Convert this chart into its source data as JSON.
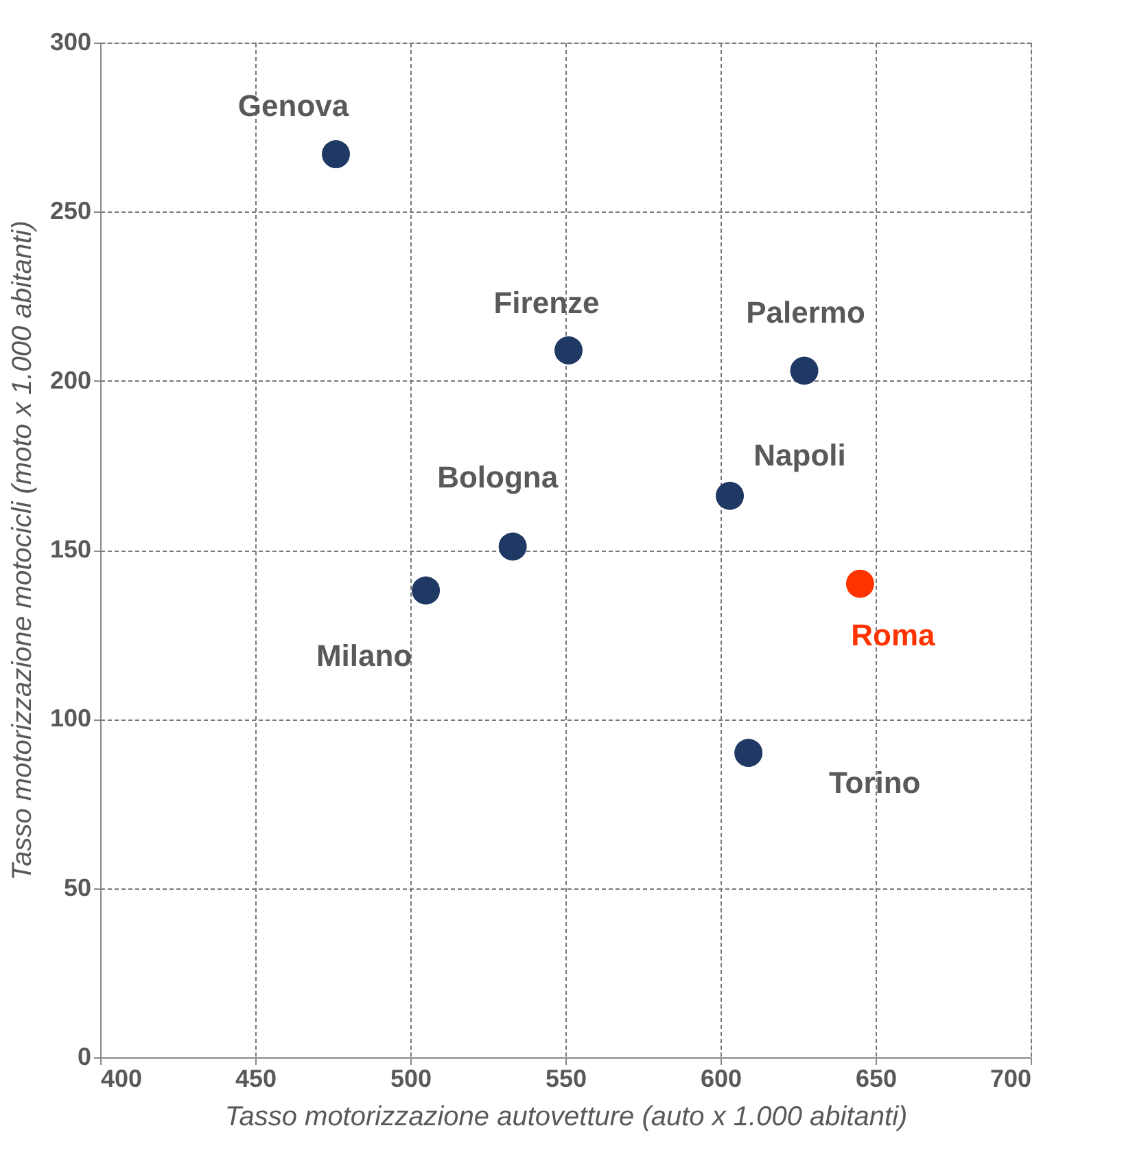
{
  "chart_data": {
    "type": "scatter",
    "xlabel": "Tasso motorizzazione autovetture (auto x 1.000 abitanti)",
    "ylabel": "Tasso motorizzazione  motocicli (moto x 1.000 abitanti)",
    "series": [
      {
        "x": [
          476,
          551,
          627,
          603,
          533,
          505,
          645,
          609
        ],
        "values": [
          267,
          209,
          203,
          166,
          151,
          138,
          140,
          90
        ],
        "colors": [
          "#1f3864",
          "#1f3864",
          "#1f3864",
          "#1f3864",
          "#1f3864",
          "#1f3864",
          "#ff3300",
          "#1f3864"
        ]
      }
    ],
    "annotations": [
      {
        "text": "Genova",
        "x": 476,
        "y": 267
      },
      {
        "text": "Firenze",
        "x": 551,
        "y": 209
      },
      {
        "text": "Palermo",
        "x": 627,
        "y": 203
      },
      {
        "text": "Napoli",
        "x": 603,
        "y": 166
      },
      {
        "text": "Bologna",
        "x": 533,
        "y": 151
      },
      {
        "text": "Milano",
        "x": 505,
        "y": 138
      },
      {
        "text": "Roma",
        "x": 645,
        "y": 140
      },
      {
        "text": "Torino",
        "x": 609,
        "y": 90
      }
    ],
    "xlim": [
      400,
      700
    ],
    "xticks": [
      400,
      450,
      500,
      550,
      600,
      650,
      700
    ],
    "ylim": [
      0,
      300
    ],
    "yticks": [
      0,
      50,
      100,
      150,
      200,
      250,
      300
    ],
    "grid": true,
    "marker": "circle"
  }
}
